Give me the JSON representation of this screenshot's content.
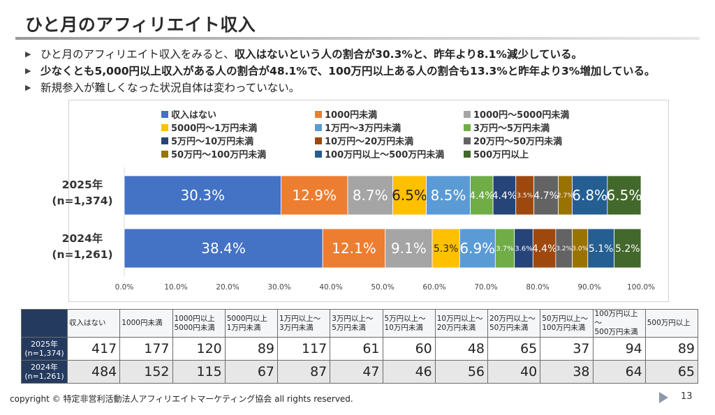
{
  "title": "ひと月のアフィリエイト収入",
  "bullets": [
    [
      {
        "t": "ひと月のアフィリエイト収入をみると、",
        "b": false
      },
      {
        "t": "収入はないという人の割合が30.3%と、昨年より8.1%減少している。",
        "b": true
      }
    ],
    [
      {
        "t": "少なくとも5,000円以上収入がある人の割合が48.1%で、100万円以上ある人の割合も13.3%と昨年より3%増加している。",
        "b": true
      }
    ],
    [
      {
        "t": "新規参入が難しくなった状況自体は変わっていない。",
        "b": false
      }
    ]
  ],
  "colors": [
    "#4472c4",
    "#ed7d31",
    "#a5a5a5",
    "#ffc000",
    "#5b9bd5",
    "#70ad47",
    "#264478",
    "#9e480e",
    "#636363",
    "#997300",
    "#255e91",
    "#43682b"
  ],
  "chart_data": {
    "type": "bar",
    "orientation": "horizontal",
    "stacked": "percent",
    "categories": [
      "2025年\n(n=1,374)",
      "2024年\n(n=1,261)"
    ],
    "series": [
      {
        "name": "収入はない",
        "values": [
          30.3,
          38.4
        ],
        "labels": [
          "30.3%",
          "38.4%"
        ]
      },
      {
        "name": "1000円未満",
        "values": [
          12.9,
          12.1
        ],
        "labels": [
          "12.9%",
          "12.1%"
        ]
      },
      {
        "name": "1000円～5000円未満",
        "values": [
          8.7,
          9.1
        ],
        "labels": [
          "8.7%",
          "9.1%"
        ]
      },
      {
        "name": "5000円～1万円未満",
        "values": [
          6.5,
          5.3
        ],
        "labels": [
          "6.5%",
          "5.3%"
        ]
      },
      {
        "name": "1万円～3万円未満",
        "values": [
          8.5,
          6.9
        ],
        "labels": [
          "8.5%",
          "6.9%"
        ]
      },
      {
        "name": "3万円～5万円未満",
        "values": [
          4.4,
          3.7
        ],
        "labels": [
          "4.4%",
          "3.7%"
        ]
      },
      {
        "name": "5万円～10万円未満",
        "values": [
          4.4,
          3.6
        ],
        "labels": [
          "4.4%",
          "3.6%"
        ]
      },
      {
        "name": "10万円～20万円未満",
        "values": [
          3.5,
          4.4
        ],
        "labels": [
          "3.5%",
          "4.4%"
        ]
      },
      {
        "name": "20万円～50万円未満",
        "values": [
          4.7,
          3.2
        ],
        "labels": [
          "4.7%",
          "3.2%"
        ]
      },
      {
        "name": "50万円～100万円未満",
        "values": [
          2.7,
          3.0
        ],
        "labels": [
          "2.7%",
          "3.0%"
        ]
      },
      {
        "name": "100万円以上～500万円未満",
        "values": [
          6.8,
          5.1
        ],
        "labels": [
          "6.8%",
          "5.1%"
        ]
      },
      {
        "name": "500万円以上",
        "values": [
          6.5,
          5.2
        ],
        "labels": [
          "6.5%",
          "5.2%"
        ]
      }
    ],
    "xticks": [
      "0.0%",
      "10.0%",
      "20.0%",
      "30.0%",
      "40.0%",
      "50.0%",
      "60.0%",
      "70.0%",
      "80.0%",
      "90.0%",
      "100.0%"
    ],
    "xlim": [
      0,
      100
    ],
    "legend_position": "top"
  },
  "table": {
    "headers": [
      [
        "収入はない"
      ],
      [
        "1000円未満"
      ],
      [
        "1000円以上",
        "5000円未満"
      ],
      [
        "5000円以上",
        "1万円未満"
      ],
      [
        "1万円以上～",
        "3万円未満"
      ],
      [
        "3万円以上～",
        "5万円未満"
      ],
      [
        "5万円以上～",
        "10万円未満"
      ],
      [
        "10万円以上～",
        "20万円未満"
      ],
      [
        "20万円以上～",
        "50万円未満"
      ],
      [
        "50万円以上～",
        "100万円未満"
      ],
      [
        "100万円以上～",
        "500万円未満"
      ],
      [
        "500万円以上"
      ]
    ],
    "rows": [
      {
        "label": [
          "2025年",
          "(n=1,374)"
        ],
        "values": [
          "417",
          "177",
          "120",
          "89",
          "117",
          "61",
          "60",
          "48",
          "65",
          "37",
          "94",
          "89"
        ]
      },
      {
        "label": [
          "2024年",
          "(n=1,261)"
        ],
        "values": [
          "484",
          "152",
          "115",
          "67",
          "87",
          "47",
          "46",
          "56",
          "40",
          "38",
          "64",
          "65"
        ]
      }
    ]
  },
  "footer": "copyright © 特定非営利活動法人アフィリエイトマーケティング協会 all rights reserved.",
  "page_number": "13"
}
